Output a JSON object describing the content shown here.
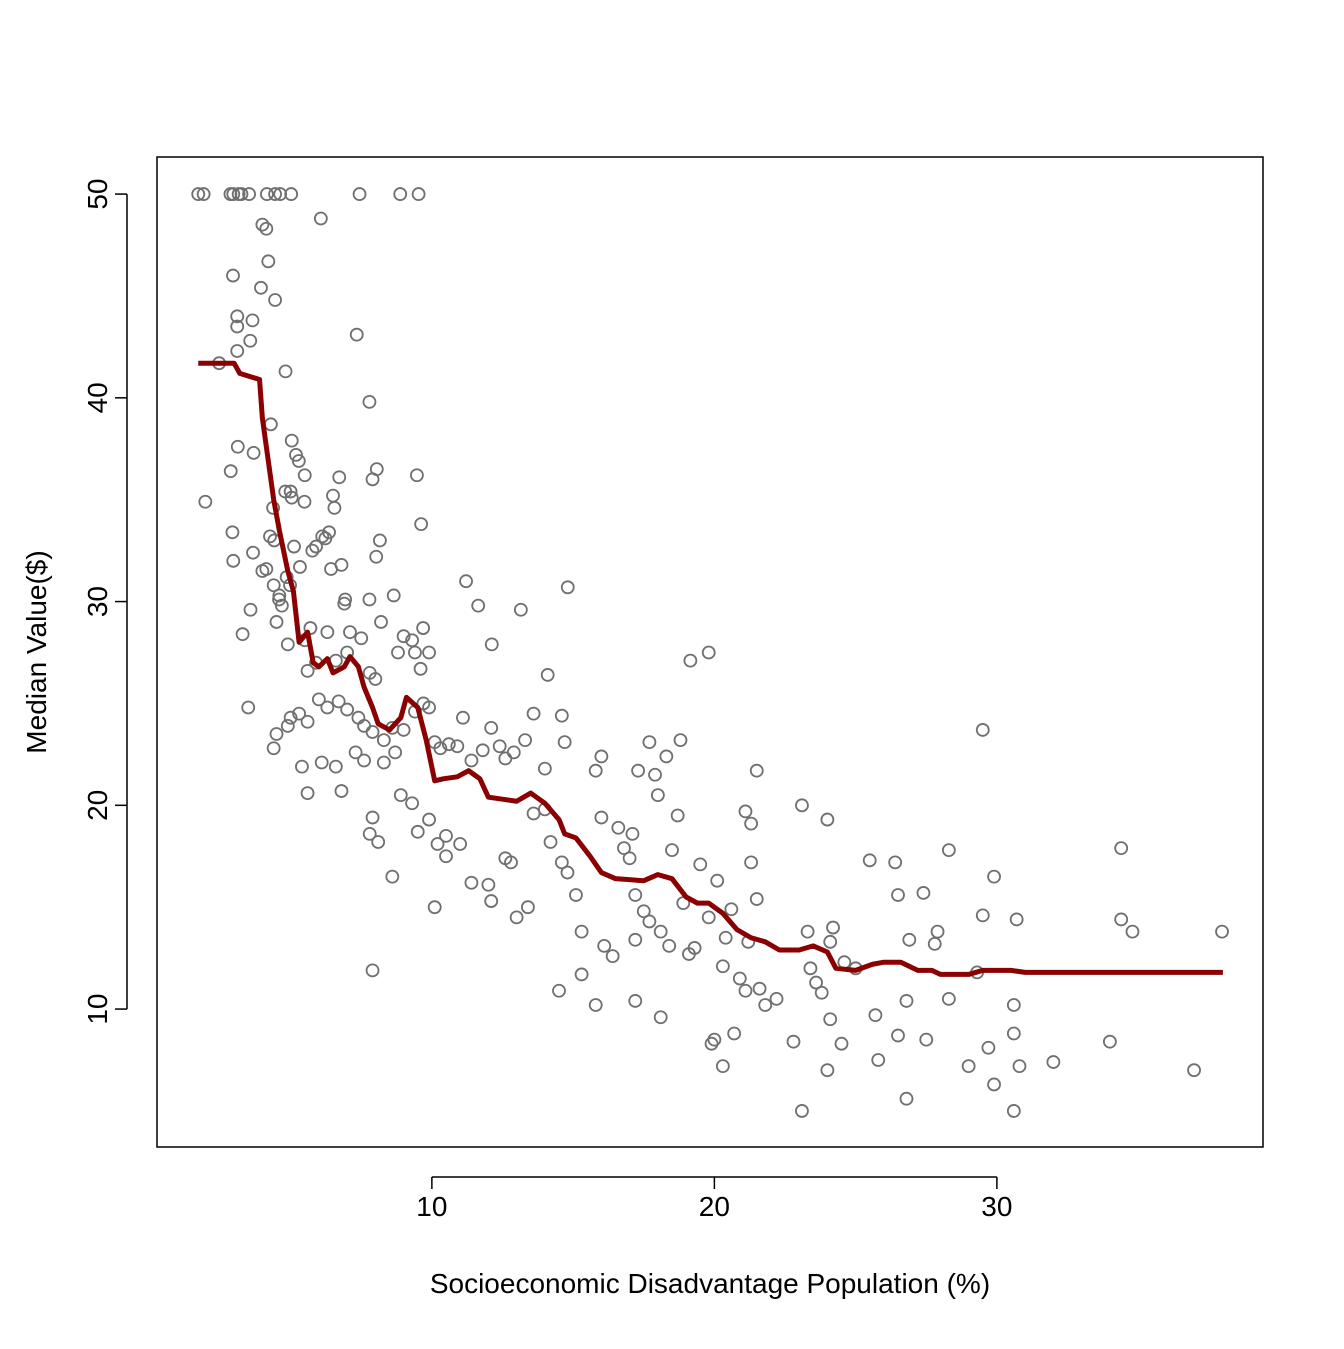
{
  "chart_data": {
    "type": "scatter",
    "x_label": "Socioeconomic Disadvantage Population (%)",
    "y_label": "Median Value($)",
    "xlim": [
      0.27,
      39.42
    ],
    "ylim": [
      3.23,
      51.82
    ],
    "xticks": [
      10,
      20,
      30
    ],
    "yticks": [
      10,
      20,
      30,
      40,
      50
    ],
    "series": [
      {
        "type": "scatter",
        "color": "#707070",
        "x": [
          1.73,
          1.92,
          2.87,
          2.97,
          3.16,
          3.26,
          3.53,
          4.16,
          4.45,
          4.63,
          5.02,
          7.44,
          8.88,
          9.53,
          6.07,
          4.0,
          4.14,
          4.21,
          2.96,
          3.95,
          4.45,
          3.11,
          3.11,
          3.65,
          7.34,
          3.57,
          3.11,
          2.47,
          4.82,
          7.79,
          4.3,
          5.04,
          3.13,
          3.69,
          5.19,
          5.29,
          2.88,
          5.5,
          9.47,
          8.05,
          6.72,
          7.9,
          4.81,
          5.0,
          5.04,
          6.5,
          1.98,
          5.49,
          4.38,
          6.55,
          9.62,
          2.94,
          4.27,
          6.36,
          6.12,
          6.23,
          4.42,
          8.16,
          5.12,
          3.67,
          5.9,
          5.77,
          8.03,
          2.97,
          6.8,
          4.0,
          4.14,
          5.33,
          4.86,
          4.98,
          6.43,
          4.4,
          4.6,
          8.65,
          4.59,
          6.93,
          7.79,
          4.69,
          6.9,
          3.58,
          11.21,
          11.64,
          13.15,
          14.81,
          4.5,
          5.7,
          7.1,
          8.2,
          9.69,
          6.3,
          5.5,
          3.3,
          9.3,
          9.0,
          7.5,
          4.9,
          8.8,
          9.4,
          9.9,
          12.12,
          6.6,
          7.0,
          5.9,
          9.6,
          7.8,
          5.6,
          8.0,
          3.5,
          14.1,
          19.15,
          19.8,
          5.0,
          4.5,
          4.9,
          5.3,
          5.6,
          6.0,
          6.3,
          6.7,
          7.0,
          7.4,
          7.6,
          7.9,
          8.3,
          8.6,
          9.0,
          9.4,
          9.7,
          9.9,
          10.1,
          10.3,
          10.6,
          10.9,
          11.1,
          11.4,
          11.8,
          12.1,
          12.4,
          12.6,
          12.9,
          13.3,
          13.6,
          14.0,
          14.6,
          14.7,
          4.4,
          5.4,
          6.1,
          6.6,
          7.3,
          7.6,
          8.3,
          8.7,
          5.6,
          6.8,
          7.9,
          8.1,
          7.8,
          8.6,
          7.9,
          8.9,
          9.3,
          9.5,
          9.9,
          10.2,
          10.5,
          10.5,
          10.1,
          11.0,
          11.4,
          12.0,
          12.1,
          12.6,
          12.8,
          13.0,
          13.4,
          13.6,
          14.0,
          14.2,
          14.6,
          14.5,
          14.8,
          15.1,
          15.3,
          15.3,
          15.8,
          15.8,
          16.0,
          16.0,
          16.1,
          16.4,
          16.6,
          16.8,
          17.0,
          17.1,
          17.3,
          17.2,
          17.5,
          17.2,
          17.2,
          17.7,
          17.7,
          17.9,
          18.0,
          18.1,
          18.1,
          18.3,
          18.5,
          18.4,
          18.7,
          18.8,
          18.9,
          19.1,
          19.3,
          19.5,
          19.8,
          19.9,
          20.1,
          20.0,
          20.3,
          20.3,
          20.4,
          20.6,
          20.7,
          20.9,
          21.1,
          21.1,
          21.3,
          21.3,
          21.2,
          21.5,
          21.5,
          21.6,
          21.8,
          22.2,
          22.8,
          23.1,
          23.1,
          23.3,
          23.4,
          23.6,
          23.8,
          24.0,
          24.0,
          24.1,
          24.2,
          24.1,
          24.5,
          24.6,
          25.0,
          25.5,
          25.7,
          25.8,
          26.4,
          26.5,
          26.5,
          26.8,
          26.8,
          26.9,
          27.4,
          27.5,
          27.8,
          27.9,
          28.3,
          28.3,
          29.0,
          29.3,
          29.5,
          29.5,
          29.7,
          29.9,
          29.9,
          30.6,
          30.6,
          30.6,
          30.7,
          30.8,
          32.0,
          34.0,
          34.4,
          34.4,
          34.8,
          36.98,
          37.97
        ],
        "y": [
          50,
          50,
          50,
          50,
          50,
          50,
          50,
          50,
          50,
          50,
          50,
          50,
          50,
          50,
          48.8,
          48.5,
          48.3,
          46.7,
          46,
          45.4,
          44.8,
          44,
          43.5,
          43.8,
          43.1,
          42.8,
          42.3,
          41.7,
          41.3,
          39.8,
          38.7,
          37.9,
          37.6,
          37.3,
          37.2,
          36.9,
          36.4,
          36.2,
          36.2,
          36.5,
          36.1,
          36,
          35.4,
          35.4,
          35.1,
          35.2,
          34.9,
          34.9,
          34.6,
          34.6,
          33.8,
          33.4,
          33.2,
          33.4,
          33.2,
          33.1,
          33,
          33,
          32.7,
          32.4,
          32.7,
          32.5,
          32.2,
          32,
          31.8,
          31.5,
          31.6,
          31.7,
          31.2,
          30.8,
          31.6,
          30.8,
          30.3,
          30.3,
          30.1,
          30.1,
          30.1,
          29.8,
          29.9,
          29.6,
          31,
          29.8,
          29.6,
          30.7,
          29,
          28.7,
          28.5,
          29,
          28.7,
          28.5,
          28.1,
          28.4,
          28.1,
          28.3,
          28.2,
          27.9,
          27.5,
          27.5,
          27.5,
          27.9,
          27.1,
          27.5,
          27.0,
          26.7,
          26.5,
          26.6,
          26.2,
          24.8,
          26.4,
          27.1,
          27.5,
          24.3,
          23.5,
          23.9,
          24.5,
          24.1,
          25.2,
          24.8,
          25.1,
          24.7,
          24.3,
          23.9,
          23.6,
          23.2,
          23.8,
          23.7,
          24.6,
          25.0,
          24.8,
          23.1,
          22.8,
          23.0,
          22.9,
          24.3,
          22.2,
          22.7,
          23.8,
          22.9,
          22.3,
          22.6,
          23.2,
          24.5,
          21.8,
          24.4,
          23.1,
          22.8,
          21.9,
          22.1,
          21.9,
          22.6,
          22.2,
          22.1,
          22.6,
          20.6,
          20.7,
          19.4,
          18.2,
          18.6,
          16.5,
          11.9,
          20.5,
          20.1,
          18.7,
          19.3,
          18.1,
          18.5,
          17.5,
          15,
          18.1,
          16.2,
          16.1,
          15.3,
          17.4,
          17.2,
          14.5,
          15.0,
          19.6,
          19.8,
          18.2,
          17.2,
          10.9,
          16.7,
          15.6,
          13.8,
          11.7,
          10.2,
          21.7,
          22.4,
          19.4,
          13.1,
          12.6,
          18.9,
          17.9,
          17.4,
          18.6,
          21.7,
          15.6,
          14.8,
          13.4,
          10.4,
          23.1,
          14.3,
          21.5,
          20.5,
          13.8,
          9.6,
          22.4,
          17.8,
          13.1,
          19.5,
          23.2,
          15.2,
          12.7,
          13.0,
          17.1,
          14.5,
          8.3,
          16.3,
          8.5,
          12.1,
          7.2,
          13.5,
          14.9,
          8.8,
          11.5,
          19.7,
          10.9,
          19.1,
          17.2,
          13.3,
          21.7,
          15.4,
          11.0,
          10.2,
          10.5,
          8.4,
          20.0,
          5.0,
          13.8,
          12.0,
          11.3,
          10.8,
          19.3,
          7.0,
          9.5,
          14.0,
          13.3,
          8.3,
          12.3,
          12.0,
          17.3,
          9.7,
          7.5,
          17.2,
          15.6,
          8.7,
          10.4,
          5.6,
          13.4,
          15.7,
          8.5,
          13.2,
          13.8,
          17.8,
          10.5,
          7.2,
          11.8,
          23.7,
          14.6,
          8.1,
          16.5,
          6.3,
          10.2,
          8.8,
          5.0,
          14.4,
          7.2,
          7.4,
          8.4,
          17.9,
          14.4,
          13.8,
          7.0,
          13.8
        ]
      },
      {
        "type": "line",
        "color": "#8b0000",
        "x": [
          1.73,
          3.0,
          3.2,
          3.9,
          4.0,
          4.2,
          4.4,
          4.6,
          4.9,
          5.1,
          5.3,
          5.6,
          5.8,
          6.0,
          6.3,
          6.5,
          6.9,
          7.1,
          7.4,
          7.6,
          7.9,
          8.1,
          8.5,
          8.9,
          9.1,
          9.5,
          9.8,
          10.1,
          10.4,
          10.9,
          11.3,
          11.7,
          12.0,
          12.5,
          13.0,
          13.5,
          14.0,
          14.5,
          14.7,
          15.1,
          15.6,
          16.0,
          16.5,
          17.5,
          18.0,
          18.5,
          19.0,
          19.4,
          19.8,
          20.3,
          20.8,
          21.3,
          21.8,
          22.3,
          23.0,
          23.5,
          24.0,
          24.3,
          25.0,
          25.6,
          26.0,
          26.6,
          27.2,
          27.7,
          28.0,
          29.0,
          29.5,
          30.5,
          31.0,
          32.0,
          38.0
        ],
        "y": [
          41.7,
          41.7,
          41.2,
          40.9,
          39,
          37,
          35,
          33.5,
          31.5,
          30.5,
          28,
          28.5,
          27,
          26.8,
          27.2,
          26.5,
          26.8,
          27.3,
          26.8,
          25.8,
          24.8,
          24,
          23.7,
          24.3,
          25.3,
          24.8,
          23.2,
          21.2,
          21.3,
          21.4,
          21.7,
          21.3,
          20.4,
          20.3,
          20.2,
          20.6,
          20.1,
          19.3,
          18.6,
          18.4,
          17.5,
          16.7,
          16.4,
          16.3,
          16.6,
          16.4,
          15.5,
          15.2,
          15.2,
          14.7,
          13.9,
          13.5,
          13.3,
          12.9,
          12.9,
          13.1,
          12.8,
          12.0,
          11.9,
          12.2,
          12.3,
          12.3,
          11.9,
          11.9,
          11.7,
          11.7,
          11.9,
          11.9,
          11.8,
          11.8,
          11.8
        ]
      }
    ]
  }
}
